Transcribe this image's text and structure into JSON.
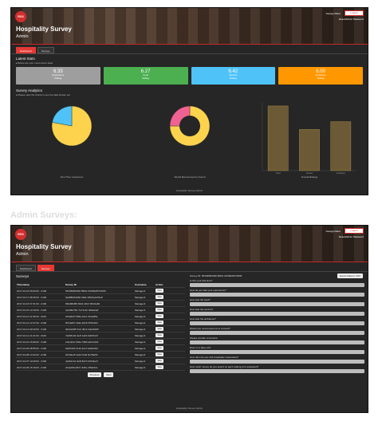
{
  "dashboard": {
    "header": {
      "logo": "RGX",
      "title": "Hospitality Survey",
      "subtitle": "Admin",
      "user": "George Mane",
      "logout": "Logout",
      "change_password": "Reset/Admin Password"
    },
    "tabs": [
      "Dashboard",
      "Surveys"
    ],
    "latest_stats": {
      "title": "Latest Stats",
      "note": "▸ Below are your most recent stats",
      "cards": [
        {
          "value": "6.33",
          "label1": "Experience",
          "label2": "Rating",
          "color": "#9e9e9e"
        },
        {
          "value": "6.27",
          "label1": "Food",
          "label2": "Rating",
          "color": "#4caf50"
        },
        {
          "value": "6.42",
          "label1": "Service",
          "label2": "Rating",
          "color": "#4fc3f7"
        },
        {
          "value": "6.00",
          "label1": "Ambiance",
          "label2": "Rating",
          "color": "#ff9800"
        }
      ]
    },
    "analytics": {
      "title": "Survey Analytics",
      "note": "▸ Please view the charts to see the data broken out"
    },
    "footer": "Hospitality Survey Admin"
  },
  "section_label": "Admin Surveys:",
  "surveys_page": {
    "header": {
      "logo": "RGX",
      "title": "Hospitality Survey",
      "subtitle": "Admin",
      "user": "George Mane",
      "logout": "Logout",
      "change_password": "Reset/Admin Password"
    },
    "tabs": [
      "Dashboard",
      "Surveys"
    ],
    "title": "Surveys",
    "export_button": "Export Data to CSV",
    "columns": [
      "Timestamp",
      "Survey ID",
      "Username",
      "Action"
    ],
    "rows": [
      [
        "2017-04-18 09:00:00 - 0100",
        "5ff1b898f1660 86fb4 0fc68dd5f7c6f06",
        "Manager1",
        "View"
      ],
      [
        "2017-04-17 08:45:00 - 0100",
        "6ad88f0b1660 09ab 4f8c0a1d75e8",
        "Manager1",
        "View"
      ],
      [
        "2017-04-16 07:31:00 - 0100",
        "6f0a80b8f9 84d1 b8c2 9f0d1a66",
        "Manager1",
        "View"
      ],
      [
        "2017-04-15 10:19:00 - 0100",
        "4e2d5b7f0c 7af 3c1b 0d8e6a2f",
        "Manager1",
        "View"
      ],
      [
        "2017-04-14 11:05:00 - 0100",
        "2c9e8d7f 6b5a 4d3c 2b1a0f9e",
        "Manager1",
        "View"
      ],
      [
        "2017-04-13 12:47:00 - 0100",
        "8f7e6d5c 4b3a 2918 07f6e5d4",
        "Manager1",
        "View"
      ],
      [
        "2017-04-12 09:33:00 - 0100",
        "3b2a1908 f7e6 d5c4 b3a29180",
        "Manager1",
        "View"
      ],
      [
        "2017-04-11 14:21:00 - 0100",
        "7a6b5c4d 3e2f 1a0b 9c8d7e6f",
        "Manager1",
        "View"
      ],
      [
        "2017-04-10 16:08:00 - 0100",
        "1f2e3d4c 5b6a 7980 a1b2c3d4",
        "Manager1",
        "View"
      ],
      [
        "2017-04-09 08:55:00 - 0100",
        "9e8f7a6b 5c4d 3e2f 1a0b9c8d",
        "Manager1",
        "View"
      ],
      [
        "2017-04-08 13:42:00 - 0100",
        "6c5d4e3f 2a1b 0c9d 8e7f6a5b",
        "Manager1",
        "View"
      ],
      [
        "2017-04-07 10:29:00 - 0100",
        "4a3b2c1d 0e9f 8a7b 6c5d4e3f",
        "Manager1",
        "View"
      ],
      [
        "2017-04-06 15:16:00 - 0100",
        "2d1e0f9a 8b7c 6d5e 4f3a2b1c",
        "Manager1",
        "View"
      ]
    ],
    "pager": [
      "Previous",
      "Next"
    ],
    "detail_title": "Survey ID: 5ff1b898f1660 86fb4 0fc68dd5f7c6f06",
    "questions": [
      "Is this your first time?",
      "How do you rate your experience?",
      "How was the food?",
      "How was the service?",
      "How was the ambiance?",
      "Would you recommend us to a friend?",
      "Please provide comments:",
      "Dine-in or take out?",
      "How often do you visit hospitality restaurants?",
      "How much money do you spend on each visiting of a restaurant?"
    ],
    "footer": "Hospitality Survey Admin"
  },
  "chart_data": [
    {
      "type": "pie",
      "title": "",
      "xlabel": "First Time Customers",
      "slices": [
        {
          "label": "Yes",
          "value": 78,
          "color": "#fdd34d"
        },
        {
          "label": "No",
          "value": 22,
          "color": "#4fc3f7"
        }
      ]
    },
    {
      "type": "pie",
      "title": "",
      "xlabel": "Would Recommend to Friend",
      "slices": [
        {
          "label": "Yes",
          "value": 75,
          "color": "#fdd34d"
        },
        {
          "label": "No",
          "value": 25,
          "color": "#f06292"
        }
      ]
    },
    {
      "type": "bar",
      "title": "",
      "xlabel": "Overall Ratings",
      "categories": [
        "Food",
        "Service",
        "Ambiance"
      ],
      "values": [
        6.6,
        4.2,
        5.0
      ],
      "ylim": [
        0,
        7
      ]
    }
  ]
}
